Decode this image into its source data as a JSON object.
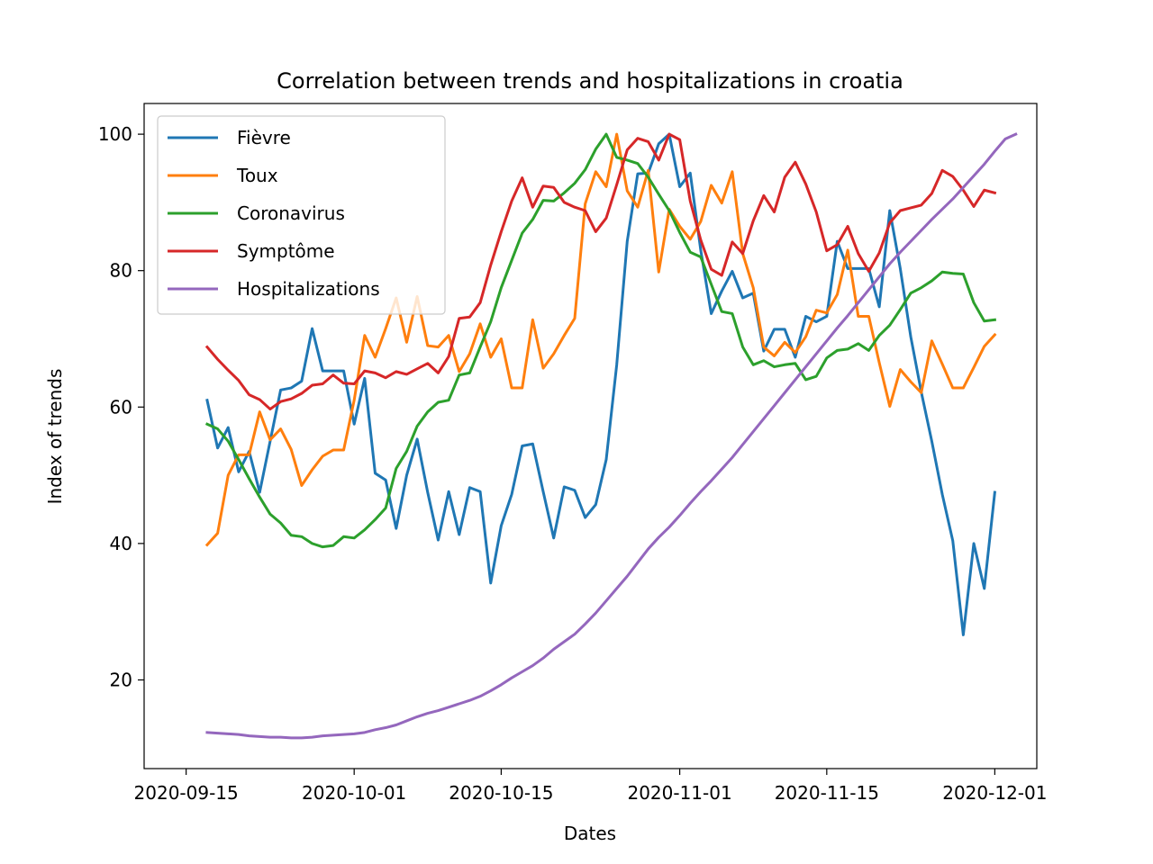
{
  "chart_data": {
    "type": "line",
    "title": "Correlation between trends and hospitalizations in croatia",
    "xlabel": "Dates",
    "ylabel": "Index of trends",
    "x_ticks": [
      "2020-09-15",
      "2020-10-01",
      "2020-10-15",
      "2020-11-01",
      "2020-11-15",
      "2020-12-01"
    ],
    "y_ticks": [
      20,
      40,
      60,
      80,
      100
    ],
    "x_range": [
      "2020-09-11",
      "2020-12-05"
    ],
    "ylim": [
      7,
      104.5
    ],
    "grid": false,
    "legend_position": "upper-left",
    "x_start": "2020-09-17",
    "series": [
      {
        "name": "Fièvre",
        "color": "#1f77b4",
        "values": [
          61,
          54,
          57,
          50.5,
          53.5,
          47.5,
          55,
          62.5,
          62.8,
          63.8,
          71.5,
          65.3,
          65.3,
          65.3,
          57.5,
          64.2,
          50.3,
          49.3,
          42.2,
          50,
          55.3,
          47.5,
          40.5,
          47.6,
          41.3,
          48.2,
          47.6,
          34.2,
          42.6,
          47.2,
          54.3,
          54.6,
          47.6,
          40.8,
          48.3,
          47.8,
          43.8,
          45.7,
          52.3,
          66.2,
          84.3,
          94.2,
          94.3,
          98.6,
          100,
          92.3,
          94.3,
          83,
          73.7,
          77,
          79.9,
          76,
          76.7,
          68.2,
          71.4,
          71.4,
          67.3,
          73.3,
          72.5,
          73.3,
          84.3,
          80.3,
          80.3,
          80.3,
          74.7,
          88.8,
          80.3,
          70.3,
          62.2,
          55,
          47.2,
          40.4,
          26.6,
          40,
          33.4,
          47.5
        ]
      },
      {
        "name": "Toux",
        "color": "#ff7f0e",
        "values": [
          39.8,
          41.5,
          50,
          53,
          53,
          59.3,
          55.2,
          56.8,
          53.8,
          48.5,
          50.8,
          52.8,
          53.7,
          53.7,
          61,
          70.5,
          67.3,
          71.5,
          76,
          69.5,
          76.2,
          69,
          68.8,
          70.5,
          65.2,
          67.8,
          72.2,
          67.3,
          70,
          62.8,
          62.8,
          72.8,
          65.7,
          67.8,
          70.5,
          73,
          89.8,
          94.5,
          92.3,
          100,
          91.7,
          89.3,
          94.7,
          79.8,
          89,
          86.5,
          84.6,
          87.2,
          92.5,
          89.9,
          94.5,
          82.5,
          77.5,
          68.8,
          67.5,
          69.5,
          68,
          70.3,
          74.2,
          73.8,
          76.5,
          83,
          73.3,
          73.3,
          66.5,
          60.1,
          65.5,
          63.7,
          62.1,
          69.7,
          66.3,
          62.8,
          62.8,
          65.8,
          68.9,
          70.6
        ]
      },
      {
        "name": "Coronavirus",
        "color": "#2ca02c",
        "values": [
          57.5,
          56.8,
          55,
          52.3,
          49.5,
          46.8,
          44.3,
          43,
          41.2,
          41,
          40,
          39.5,
          39.7,
          41,
          40.8,
          42,
          43.5,
          45.2,
          51,
          53.5,
          57.2,
          59.3,
          60.7,
          61,
          64.7,
          65,
          68.8,
          72.5,
          77.5,
          81.5,
          85.5,
          87.5,
          90.3,
          90.2,
          91.4,
          92.8,
          94.8,
          97.8,
          100,
          96.6,
          96.2,
          95.7,
          93.7,
          91.2,
          88.8,
          85.6,
          82.7,
          82,
          78,
          74,
          73.7,
          68.8,
          66.2,
          66.8,
          65.9,
          66.2,
          66.4,
          64,
          64.5,
          67.2,
          68.3,
          68.5,
          69.3,
          68.3,
          70.5,
          72,
          74.3,
          76.7,
          77.5,
          78.5,
          79.8,
          79.6,
          79.5,
          75.3,
          72.6,
          72.8
        ]
      },
      {
        "name": "Symptôme",
        "color": "#d62728",
        "values": [
          68.8,
          67,
          65.4,
          63.9,
          61.8,
          61.1,
          59.7,
          60.8,
          61.2,
          62,
          63.2,
          63.4,
          64.7,
          63.5,
          63.4,
          65.3,
          65,
          64.3,
          65.2,
          64.8,
          65.6,
          66.4,
          65,
          67.4,
          73,
          73.2,
          75.3,
          80.8,
          85.7,
          90.2,
          93.6,
          89.3,
          92.4,
          92.2,
          90,
          89.3,
          88.8,
          85.7,
          87.7,
          92.6,
          97.7,
          99.4,
          98.9,
          96.2,
          100,
          99.2,
          90.2,
          84.5,
          80.2,
          79.3,
          84.2,
          82.5,
          87.3,
          91,
          88.6,
          93.7,
          95.9,
          92.7,
          88.6,
          82.9,
          83.8,
          86.5,
          82.5,
          79.9,
          82.6,
          87,
          88.8,
          89.2,
          89.6,
          91.3,
          94.7,
          93.8,
          91.8,
          89.4,
          91.8,
          91.4
        ]
      },
      {
        "name": "Hospitalizations",
        "color": "#9467bd",
        "values": [
          12.3,
          12.2,
          12.1,
          12,
          11.8,
          11.7,
          11.6,
          11.6,
          11.5,
          11.5,
          11.6,
          11.8,
          11.9,
          12,
          12.1,
          12.3,
          12.7,
          13,
          13.4,
          14,
          14.6,
          15.1,
          15.5,
          16,
          16.5,
          17,
          17.6,
          18.4,
          19.3,
          20.3,
          21.2,
          22.1,
          23.2,
          24.5,
          25.6,
          26.7,
          28.2,
          29.8,
          31.6,
          33.4,
          35.2,
          37.2,
          39.2,
          40.9,
          42.4,
          44.1,
          45.9,
          47.6,
          49.2,
          50.9,
          52.6,
          54.5,
          56.4,
          58.3,
          60.2,
          62.1,
          64,
          65.9,
          67.8,
          69.7,
          71.6,
          73.4,
          75.3,
          77.2,
          79.1,
          81,
          82.7,
          84.3,
          85.9,
          87.5,
          89,
          90.5,
          92.2,
          93.9,
          95.6,
          97.5,
          99.3,
          100
        ]
      }
    ]
  }
}
